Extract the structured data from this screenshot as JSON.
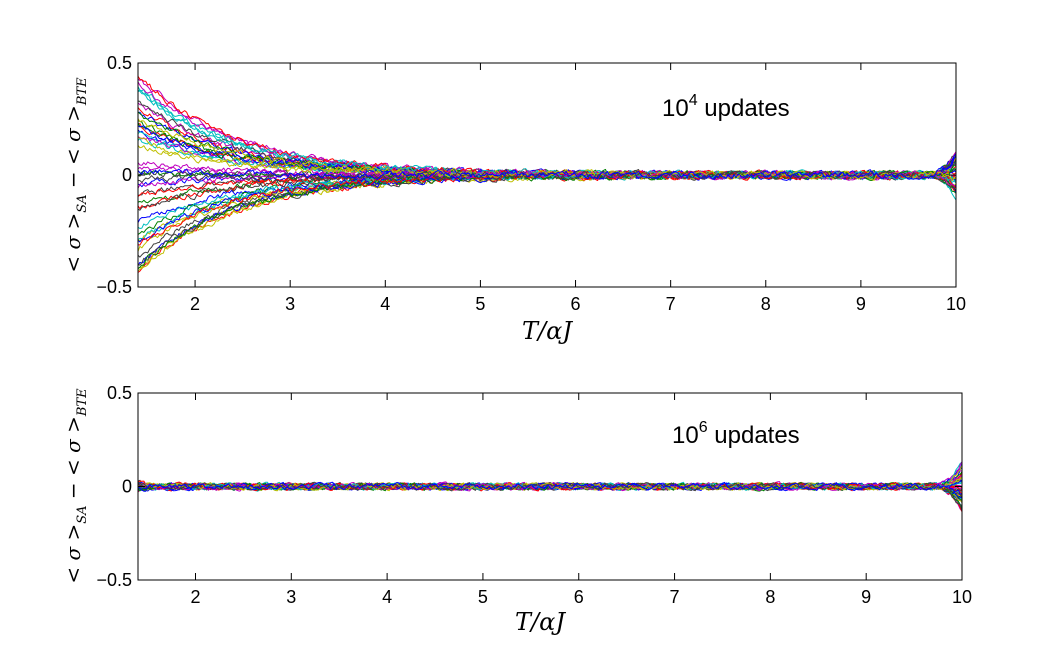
{
  "chart_data": [
    {
      "type": "line",
      "title": "",
      "xlabel": "T/αJ",
      "ylabel": "< σ >SA − < σ >BTE",
      "ylabel_parts": {
        "lhs": "< σ >",
        "lhs_sub": "SA",
        "mid": " − < σ >",
        "rhs_sub": "BTE"
      },
      "xlim": [
        1.4,
        10
      ],
      "ylim": [
        -0.5,
        0.5
      ],
      "xticks": [
        2,
        3,
        4,
        5,
        6,
        7,
        8,
        9,
        10
      ],
      "yticks": [
        -0.5,
        0,
        0.5
      ],
      "ytick_labels": [
        "−0.5",
        "0",
        "0.5"
      ],
      "annotation": {
        "base": "10",
        "exp": "4",
        "text": " updates"
      },
      "series_count": 50,
      "series_summary": {
        "initial_deviation_range": [
          -0.44,
          0.45
        ],
        "decay_scale": 1.2,
        "settled_by_x": 3.8,
        "noise_amplitude": 0.012,
        "endpoint_spread": 0.11
      },
      "grid": false
    },
    {
      "type": "line",
      "title": "",
      "xlabel": "T/αJ",
      "ylabel": "< σ >SA − < σ >BTE",
      "ylabel_parts": {
        "lhs": "< σ >",
        "lhs_sub": "SA",
        "mid": " − < σ >",
        "rhs_sub": "BTE"
      },
      "xlim": [
        1.4,
        10
      ],
      "ylim": [
        -0.5,
        0.5
      ],
      "xticks": [
        2,
        3,
        4,
        5,
        6,
        7,
        8,
        9,
        10
      ],
      "yticks": [
        -0.5,
        0,
        0.5
      ],
      "ytick_labels": [
        "−0.5",
        "0",
        "0.5"
      ],
      "annotation": {
        "base": "10",
        "exp": "6",
        "text": " updates"
      },
      "series_count": 50,
      "series_summary": {
        "initial_deviation_range": [
          -0.02,
          0.02
        ],
        "decay_scale": 0.1,
        "settled_by_x": 1.4,
        "noise_amplitude": 0.012,
        "endpoint_spread": 0.13
      },
      "grid": false
    }
  ],
  "colors": [
    "#0000ff",
    "#008000",
    "#ff0000",
    "#00bfbf",
    "#bf00bf",
    "#bfbf00",
    "#404040"
  ]
}
